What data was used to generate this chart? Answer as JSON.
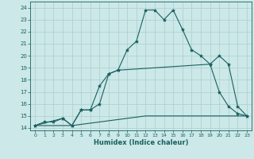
{
  "xlabel": "Humidex (Indice chaleur)",
  "bg_color": "#cce8e8",
  "line_color": "#1a6060",
  "grid_color": "#aacece",
  "xlim": [
    -0.5,
    23.5
  ],
  "ylim": [
    13.8,
    24.5
  ],
  "xticks": [
    0,
    1,
    2,
    3,
    4,
    5,
    6,
    7,
    8,
    9,
    10,
    11,
    12,
    13,
    14,
    15,
    16,
    17,
    18,
    19,
    20,
    21,
    22,
    23
  ],
  "yticks": [
    14,
    15,
    16,
    17,
    18,
    19,
    20,
    21,
    22,
    23,
    24
  ],
  "line1_x": [
    0,
    1,
    2,
    3,
    4,
    5,
    6,
    7,
    8,
    9,
    10,
    11,
    12,
    13,
    14,
    15,
    16,
    17,
    18,
    19,
    20,
    21,
    22,
    23
  ],
  "line1_y": [
    14.2,
    14.5,
    14.5,
    14.8,
    14.2,
    15.5,
    15.5,
    16.0,
    18.5,
    18.8,
    20.5,
    21.2,
    23.8,
    23.8,
    23.0,
    23.8,
    22.2,
    20.5,
    20.0,
    19.3,
    17.0,
    15.8,
    15.2,
    15.0
  ],
  "line2_x": [
    0,
    3,
    4,
    5,
    6,
    7,
    8,
    9,
    19,
    20,
    21,
    22,
    23
  ],
  "line2_y": [
    14.2,
    14.8,
    14.2,
    15.5,
    15.5,
    17.5,
    18.5,
    18.8,
    19.3,
    20.0,
    19.3,
    15.8,
    15.0
  ],
  "line3_x": [
    0,
    4,
    12,
    20,
    23
  ],
  "line3_y": [
    14.2,
    14.2,
    15.0,
    15.0,
    15.0
  ]
}
